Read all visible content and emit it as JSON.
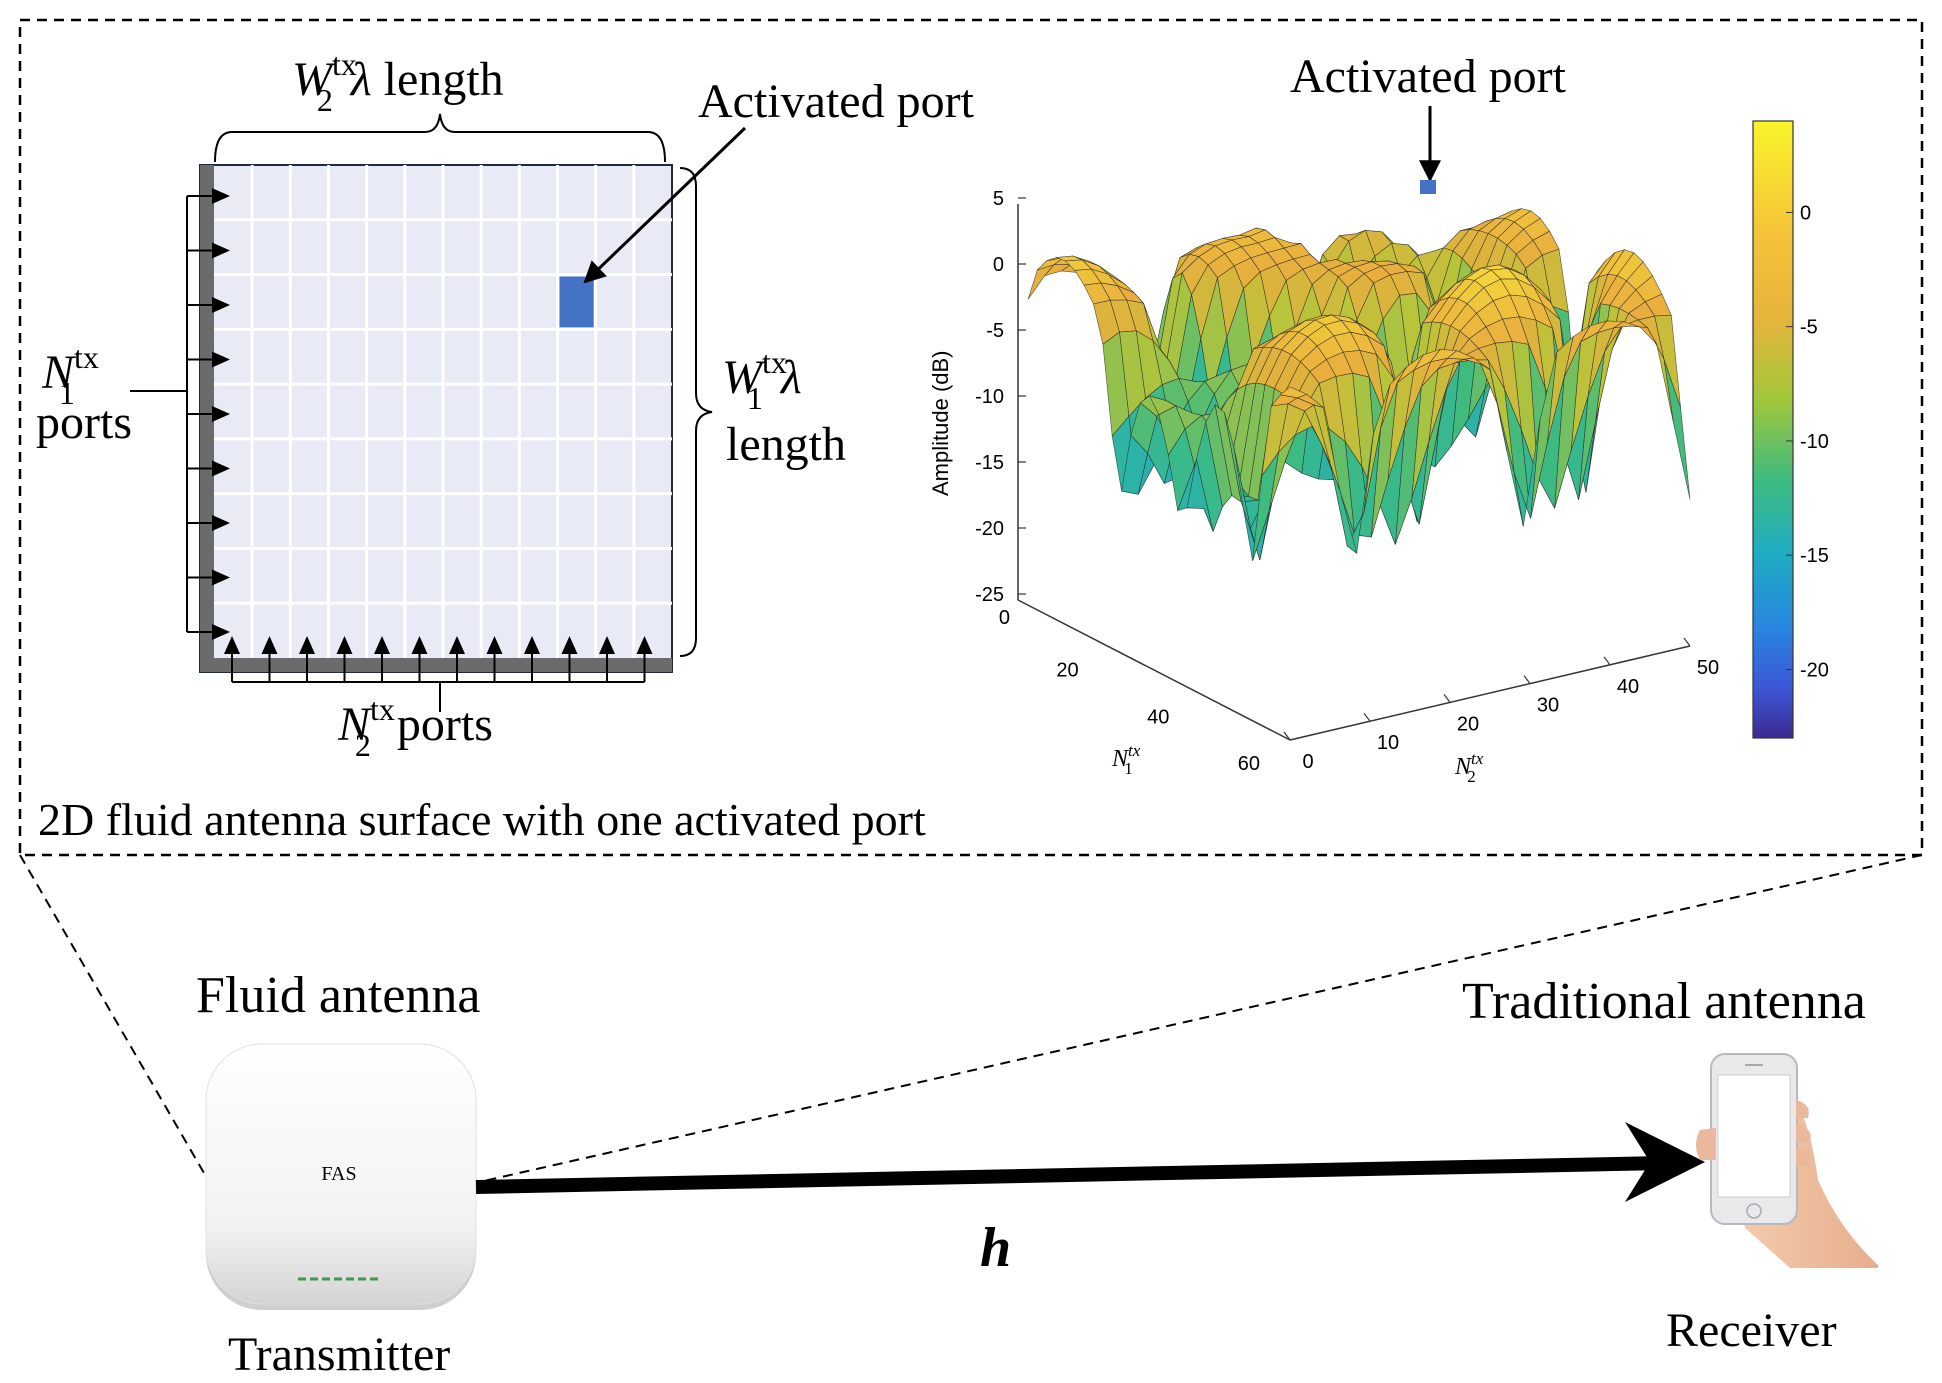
{
  "colors": {
    "grid_fill": "#e8eaf6",
    "grid_line": "#ffffff",
    "active_port": "#4472c4",
    "bar": "#6b6b6b",
    "cmap_low": "#3b2a90",
    "cmap_mid": "#21a9b0",
    "cmap_high": "#f9f42a",
    "surface_warm": "#f2b53a"
  },
  "panel": {
    "caption": "2D fluid antenna surface with one activated port"
  },
  "left_diagram": {
    "top_label_math": "W",
    "top_label_sub": "2",
    "top_label_sup": "tx",
    "top_label_lambda": "λ",
    "top_label_text": "length",
    "right_label_math": "W",
    "right_label_sub": "1",
    "right_label_sup": "tx",
    "right_label_lambda": "λ",
    "right_label_text": "length",
    "left_label_math": "N",
    "left_label_sub": "1",
    "left_label_sup": "tx",
    "left_label_text": "ports",
    "bottom_label_math": "N",
    "bottom_label_sub": "2",
    "bottom_label_sup": "tx",
    "bottom_label_text": "ports",
    "activated_label": "Activated port",
    "grid_rows": 9,
    "grid_cols": 12,
    "active_row": 2,
    "active_col": 9,
    "left_arrows": 9,
    "bottom_arrows": 12
  },
  "chart_data": {
    "type": "surface3d",
    "title": "",
    "annotation": "Activated port",
    "zlabel": "Amplitude (dB)",
    "xlabel_math": "N",
    "xlabel_sub": "1",
    "xlabel_sup": "tx",
    "ylabel_math": "N",
    "ylabel_sub": "2",
    "ylabel_sup": "tx",
    "z_ticks": [
      "5",
      "0",
      "-5",
      "-10",
      "-15",
      "-20",
      "-25"
    ],
    "x_ticks": [
      "0",
      "20",
      "40",
      "60"
    ],
    "y_ticks": [
      "0",
      "10",
      "20",
      "30",
      "40",
      "50"
    ],
    "zlim": [
      -25,
      5
    ],
    "xlim": [
      0,
      60
    ],
    "ylim": [
      0,
      50
    ],
    "colorbar_ticks": [
      "0",
      "-5",
      "-10",
      "-15",
      "-20"
    ],
    "colorbar_range": [
      -23,
      4
    ]
  },
  "bottom": {
    "fluid_label": "Fluid antenna",
    "device_text": "FAS",
    "transmitter_label": "Transmitter",
    "channel_label": "h",
    "traditional_label": "Traditional antenna",
    "receiver_label": "Receiver"
  }
}
